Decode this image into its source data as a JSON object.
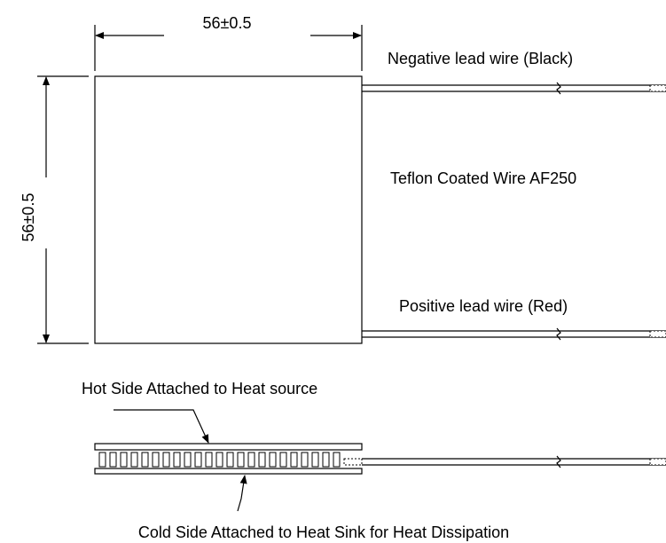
{
  "dimensions": {
    "width": "56±0.5",
    "height": "56±0.5"
  },
  "labels": {
    "negative_wire": "Negative lead wire (Black)",
    "wire_type": "Teflon Coated Wire AF250",
    "positive_wire": "Positive lead wire (Red)",
    "hot_side": "Hot Side Attached to Heat source",
    "cold_side": "Cold Side Attached to Heat Sink for Heat Dissipation"
  }
}
